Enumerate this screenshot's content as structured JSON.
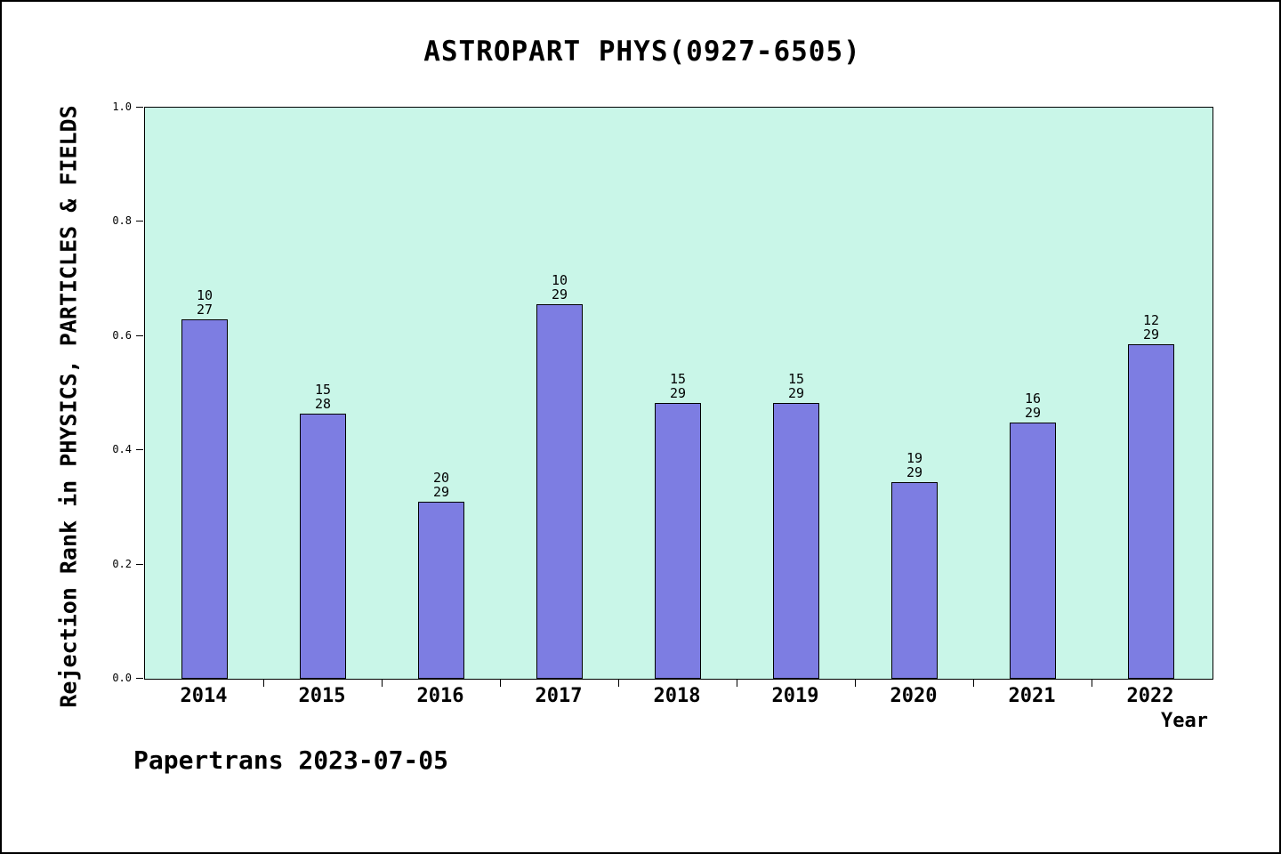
{
  "chart_data": {
    "type": "bar",
    "title": "ASTROPART PHYS(0927-6505)",
    "ylabel": "Rejection Rank in PHYSICS, PARTICLES & FIELDS",
    "xlabel": "Year",
    "footer": "Papertrans 2023-07-05",
    "categories": [
      "2014",
      "2015",
      "2016",
      "2017",
      "2018",
      "2019",
      "2020",
      "2021",
      "2022"
    ],
    "values": [
      0.63,
      0.464,
      0.31,
      0.655,
      0.483,
      0.483,
      0.345,
      0.448,
      0.586
    ],
    "bar_labels": [
      [
        "10",
        "27"
      ],
      [
        "15",
        "28"
      ],
      [
        "20",
        "29"
      ],
      [
        "10",
        "29"
      ],
      [
        "15",
        "29"
      ],
      [
        "15",
        "29"
      ],
      [
        "19",
        "29"
      ],
      [
        "16",
        "29"
      ],
      [
        "12",
        "29"
      ]
    ],
    "ylim": [
      0,
      1
    ],
    "yticks": [
      0.0,
      0.2,
      0.4,
      0.6,
      0.8,
      1.0
    ],
    "ytick_labels": [
      "0.0",
      "0.2",
      "0.4",
      "0.6",
      "0.8",
      "1.0"
    ],
    "legend": "none",
    "grid": "off",
    "bar_color": "#7d7de2",
    "bar_edge_color": "#000000",
    "plot_bg_color": "#c9f6e8"
  }
}
